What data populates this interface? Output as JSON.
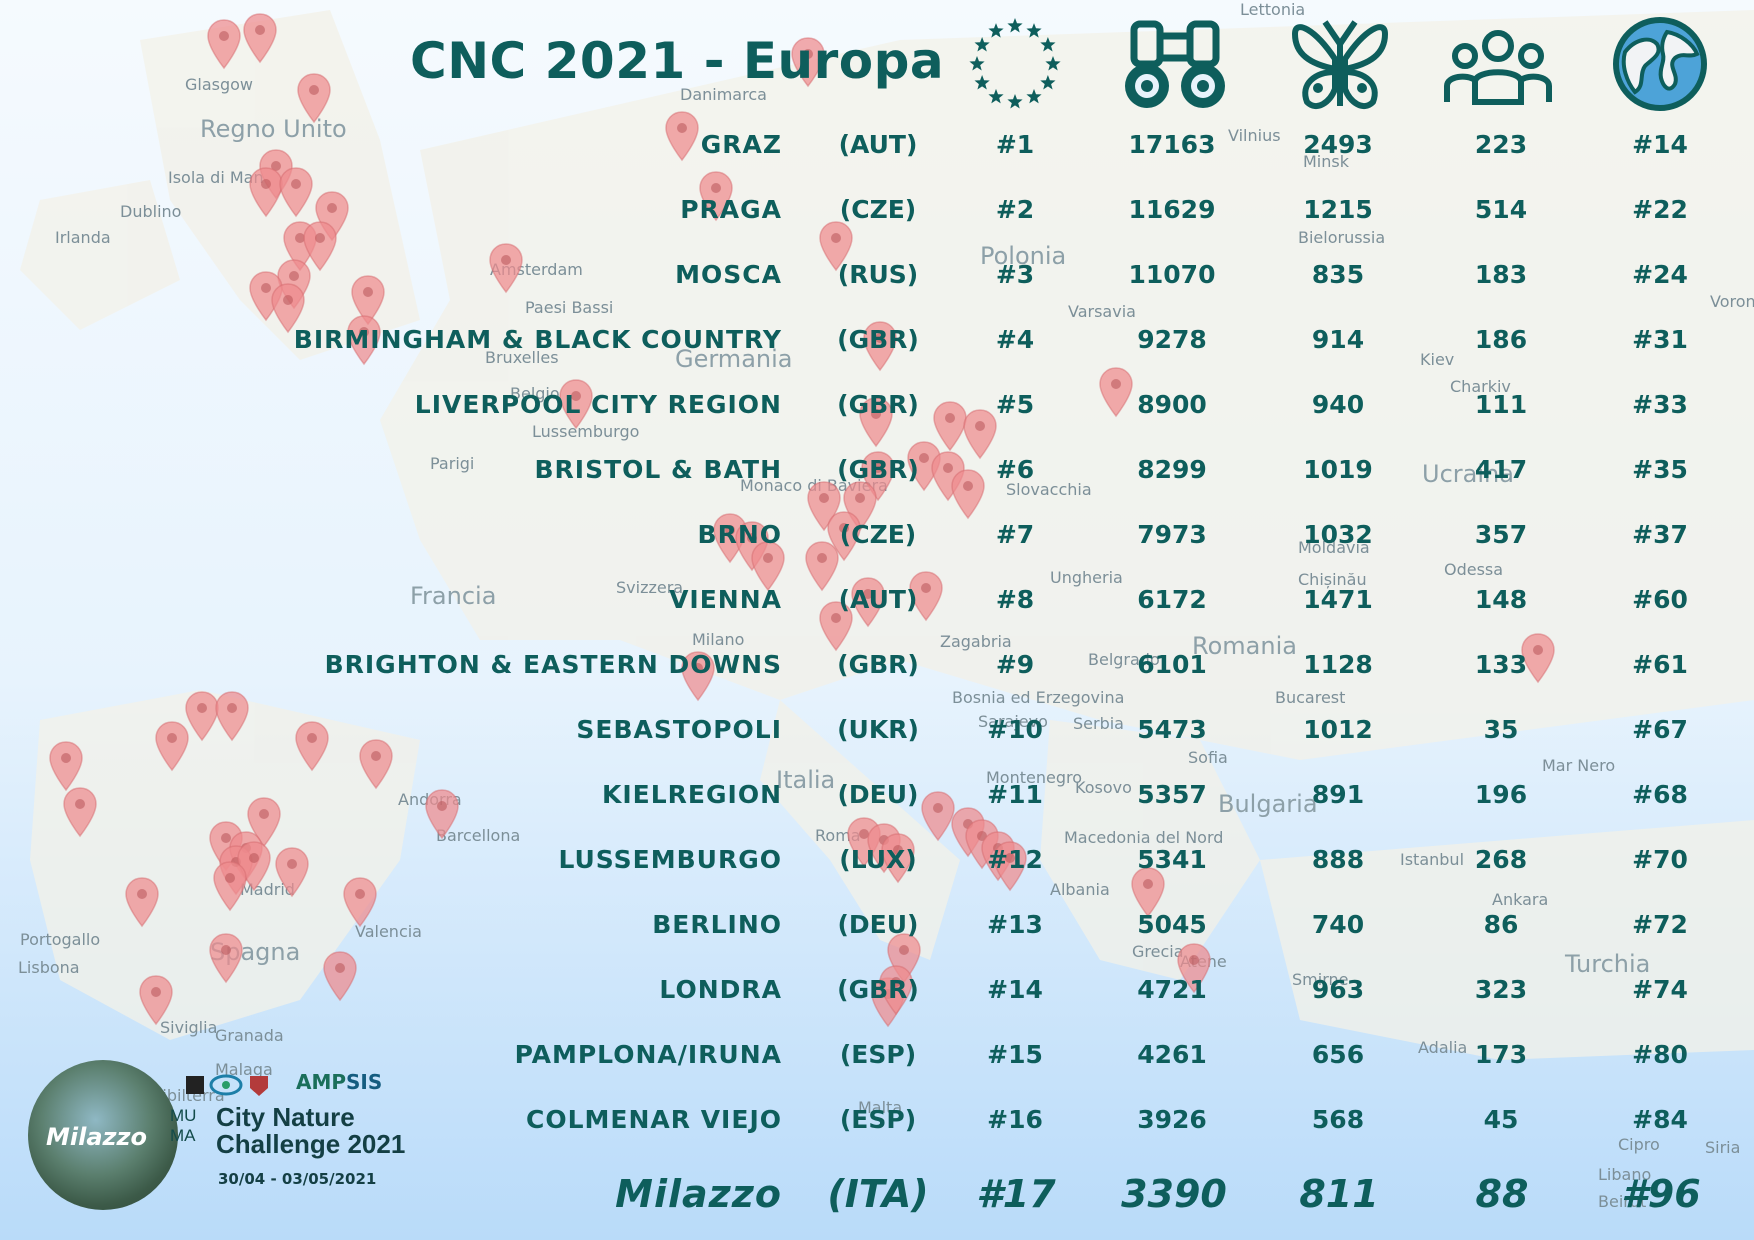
{
  "title": "CNC 2021 - Europa",
  "header_icons": [
    "stars-circle-icon",
    "binoculars-icon",
    "butterfly-icon",
    "people-icon",
    "globe-icon"
  ],
  "colors": {
    "text": "#0e5e5c",
    "pin": "#ee8b8d",
    "sky": "#bfe0fb"
  },
  "rows": [
    {
      "city": "GRAZ",
      "country": "(AUT)",
      "rank": "#1",
      "observations": "17163",
      "species": "2493",
      "people": "223",
      "global": "#14"
    },
    {
      "city": "PRAGA",
      "country": "(CZE)",
      "rank": "#2",
      "observations": "11629",
      "species": "1215",
      "people": "514",
      "global": "#22"
    },
    {
      "city": "MOSCA",
      "country": "(RUS)",
      "rank": "#3",
      "observations": "11070",
      "species": "835",
      "people": "183",
      "global": "#24"
    },
    {
      "city": "BIRMINGHAM & BLACK COUNTRY",
      "country": "(GBR)",
      "rank": "#4",
      "observations": "9278",
      "species": "914",
      "people": "186",
      "global": "#31"
    },
    {
      "city": "LIVERPOOL CITY REGION",
      "country": "(GBR)",
      "rank": "#5",
      "observations": "8900",
      "species": "940",
      "people": "111",
      "global": "#33"
    },
    {
      "city": "BRISTOL & BATH",
      "country": "(GBR)",
      "rank": "#6",
      "observations": "8299",
      "species": "1019",
      "people": "417",
      "global": "#35"
    },
    {
      "city": "BRNO",
      "country": "(CZE)",
      "rank": "#7",
      "observations": "7973",
      "species": "1032",
      "people": "357",
      "global": "#37"
    },
    {
      "city": "VIENNA",
      "country": "(AUT)",
      "rank": "#8",
      "observations": "6172",
      "species": "1471",
      "people": "148",
      "global": "#60"
    },
    {
      "city": "BRIGHTON & EASTERN DOWNS",
      "country": "(GBR)",
      "rank": "#9",
      "observations": "6101",
      "species": "1128",
      "people": "133",
      "global": "#61"
    },
    {
      "city": "SEBASTOPOLI",
      "country": "(UKR)",
      "rank": "#10",
      "observations": "5473",
      "species": "1012",
      "people": "35",
      "global": "#67"
    },
    {
      "city": "KIELREGION",
      "country": "(DEU)",
      "rank": "#11",
      "observations": "5357",
      "species": "891",
      "people": "196",
      "global": "#68"
    },
    {
      "city": "LUSSEMBURGO",
      "country": "(LUX)",
      "rank": "#12",
      "observations": "5341",
      "species": "888",
      "people": "268",
      "global": "#70"
    },
    {
      "city": "BERLINO",
      "country": "(DEU)",
      "rank": "#13",
      "observations": "5045",
      "species": "740",
      "people": "86",
      "global": "#72"
    },
    {
      "city": "LONDRA",
      "country": "(GBR)",
      "rank": "#14",
      "observations": "4721",
      "species": "963",
      "people": "323",
      "global": "#74"
    },
    {
      "city": "PAMPLONA/IRUNA",
      "country": "(ESP)",
      "rank": "#15",
      "observations": "4261",
      "species": "656",
      "people": "173",
      "global": "#80"
    },
    {
      "city": "COLMENAR VIEJO",
      "country": "(ESP)",
      "rank": "#16",
      "observations": "3926",
      "species": "568",
      "people": "45",
      "global": "#84"
    }
  ],
  "highlight": {
    "city": "Milazzo",
    "country": "(ITA)",
    "rank": "#17",
    "observations": "3390",
    "species": "811",
    "people": "88",
    "global": "#96"
  },
  "map_labels": [
    "Lettonia",
    "Danimarca",
    "Glasgow",
    "Regno Unito",
    "Isola di Man",
    "Dublino",
    "Irlanda",
    "Amsterdam",
    "Paesi Bassi",
    "Bruxelles",
    "Belgio",
    "Lussemburgo",
    "Germania",
    "Polonia",
    "Varsavia",
    "Vilnius",
    "Minsk",
    "Bielorussia",
    "Kiev",
    "Charkiv",
    "Ucraina",
    "Parigi",
    "Monaco di Baviera",
    "Slovacchia",
    "Francia",
    "Svizzera",
    "Ungheria",
    "Moldavia",
    "Chișinău",
    "Odessa",
    "Milano",
    "Zagabria",
    "Belgrado",
    "Romania",
    "Bucarest",
    "Bosnia ed Erzegovina",
    "Sarajevo",
    "Serbia",
    "Italia",
    "Montenegro",
    "Kosovo",
    "Sofia",
    "Bulgaria",
    "Andorra",
    "Barcellona",
    "Roma",
    "Macedonia del Nord",
    "Albania",
    "Istanbul",
    "Ankara",
    "Turchia",
    "Grecia",
    "Atene",
    "Smirne",
    "Portogallo",
    "Lisbona",
    "Spagna",
    "Madrid",
    "Valencia",
    "Siviglia",
    "Granada",
    "Malaga",
    "Gibilterra",
    "Malta",
    "Adalia",
    "Cipro",
    "Libano",
    "Beirut",
    "Siria",
    "Mar Nero",
    "Voronezh"
  ],
  "logo": {
    "milazzo": "Milazzo",
    "muma": "MU MA",
    "line1": "City Nature",
    "line2": "Challenge 2021",
    "dates": "30/04 - 03/05/2021",
    "amp": "AMP",
    "sis": "SIS"
  }
}
